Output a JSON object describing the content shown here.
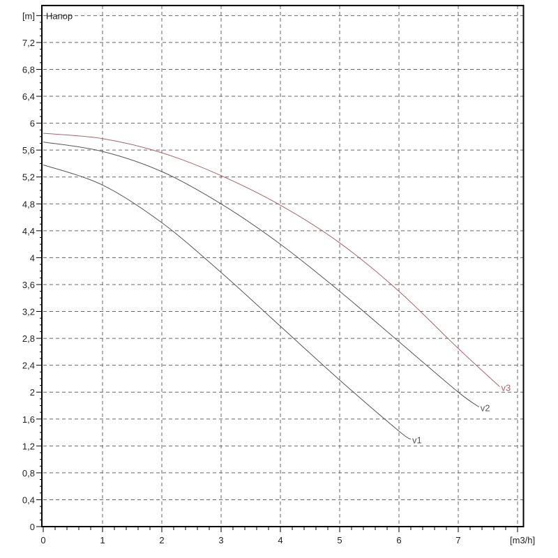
{
  "chart_data": {
    "type": "line",
    "title": "Напор",
    "xlabel": "[m3/h]",
    "ylabel": "[m]",
    "xlim": [
      0,
      8.1
    ],
    "ylim": [
      0,
      7.75
    ],
    "x_ticks": [
      0,
      1,
      2,
      3,
      4,
      5,
      6,
      7
    ],
    "y_ticks": [
      "0",
      "0,4",
      "0,8",
      "1,2",
      "1,6",
      "2",
      "2,4",
      "2,8",
      "3,2",
      "3,6",
      "4",
      "4,4",
      "4,8",
      "5,2",
      "5,6",
      "6",
      "6,4",
      "6,8",
      "7,2"
    ],
    "grid": true,
    "series": [
      {
        "name": "v1",
        "color": "#555555",
        "x": [
          0,
          1,
          2,
          3,
          4,
          5,
          6,
          6.2
        ],
        "y": [
          5.38,
          5.08,
          4.52,
          3.78,
          2.98,
          2.18,
          1.42,
          1.3
        ]
      },
      {
        "name": "v2",
        "color": "#555555",
        "x": [
          0,
          1,
          2,
          3,
          4,
          5,
          6,
          7,
          7.35
        ],
        "y": [
          5.72,
          5.58,
          5.28,
          4.8,
          4.2,
          3.5,
          2.75,
          2.0,
          1.78
        ]
      },
      {
        "name": "v3",
        "color": "#b0606a",
        "x": [
          0,
          1,
          2,
          3,
          4,
          5,
          6,
          7,
          7.7
        ],
        "y": [
          5.85,
          5.77,
          5.56,
          5.22,
          4.78,
          4.22,
          3.5,
          2.65,
          2.08
        ]
      }
    ]
  }
}
